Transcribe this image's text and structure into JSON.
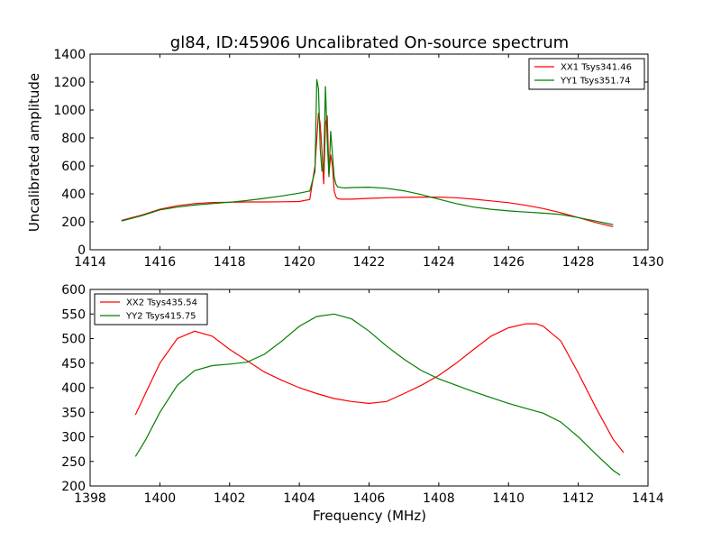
{
  "chart_data": [
    {
      "type": "line",
      "title": "gl84, ID:45906 Uncalibrated On-source spectrum",
      "xlabel": "",
      "ylabel": "Uncalibrated amplitude",
      "xlim": [
        1414,
        1430
      ],
      "ylim": [
        0,
        1400
      ],
      "xticks": [
        1414,
        1416,
        1418,
        1420,
        1422,
        1424,
        1426,
        1428,
        1430
      ],
      "yticks": [
        0,
        200,
        400,
        600,
        800,
        1000,
        1200,
        1400
      ],
      "legend": "top-right",
      "series": [
        {
          "name": "XX1 Tsys341.46",
          "color": "#ff0000",
          "x": [
            1414.9,
            1415.5,
            1416,
            1416.5,
            1417,
            1417.5,
            1418,
            1418.5,
            1419,
            1419.5,
            1420,
            1420.3,
            1420.45,
            1420.55,
            1420.6,
            1420.65,
            1420.7,
            1420.75,
            1420.8,
            1420.85,
            1420.9,
            1420.95,
            1421.0,
            1421.05,
            1421.1,
            1421.2,
            1421.5,
            1422,
            1422.5,
            1423,
            1423.5,
            1424,
            1424.5,
            1425,
            1425.5,
            1426,
            1426.5,
            1427,
            1427.5,
            1428,
            1428.5,
            1429
          ],
          "y": [
            210,
            250,
            290,
            315,
            330,
            338,
            340,
            342,
            342,
            343,
            345,
            360,
            600,
            980,
            900,
            700,
            470,
            900,
            960,
            540,
            680,
            600,
            420,
            380,
            365,
            362,
            362,
            368,
            372,
            375,
            377,
            377,
            372,
            362,
            350,
            337,
            318,
            295,
            265,
            230,
            195,
            165
          ]
        },
        {
          "name": "YY1 Tsys351.74",
          "color": "#008000",
          "x": [
            1414.9,
            1415.5,
            1416,
            1416.5,
            1417,
            1417.5,
            1418,
            1418.5,
            1419,
            1419.5,
            1420,
            1420.3,
            1420.45,
            1420.5,
            1420.55,
            1420.6,
            1420.65,
            1420.7,
            1420.75,
            1420.8,
            1420.85,
            1420.9,
            1420.95,
            1421.0,
            1421.05,
            1421.1,
            1421.3,
            1421.5,
            1422,
            1422.5,
            1423,
            1423.5,
            1424,
            1424.5,
            1425,
            1425.5,
            1426,
            1426.5,
            1427,
            1427.5,
            1428,
            1428.5,
            1429
          ],
          "y": [
            205,
            245,
            285,
            305,
            320,
            330,
            340,
            352,
            368,
            385,
            405,
            420,
            560,
            1220,
            1150,
            720,
            560,
            590,
            1170,
            780,
            520,
            850,
            680,
            520,
            470,
            450,
            442,
            445,
            448,
            440,
            422,
            395,
            362,
            330,
            305,
            290,
            278,
            270,
            262,
            252,
            230,
            205,
            180
          ]
        }
      ]
    },
    {
      "type": "line",
      "title": "",
      "xlabel": "Frequency (MHz)",
      "ylabel": "",
      "xlim": [
        1398,
        1414
      ],
      "ylim": [
        200,
        600
      ],
      "xticks": [
        1398,
        1400,
        1402,
        1404,
        1406,
        1408,
        1410,
        1412,
        1414
      ],
      "yticks": [
        200,
        250,
        300,
        350,
        400,
        450,
        500,
        550,
        600
      ],
      "legend": "top-left",
      "series": [
        {
          "name": "XX2 Tsys435.54",
          "color": "#ff0000",
          "x": [
            1399.3,
            1399.6,
            1400,
            1400.5,
            1401,
            1401.5,
            1402,
            1402.5,
            1403,
            1403.5,
            1404,
            1404.5,
            1405,
            1405.5,
            1406,
            1406.5,
            1407,
            1407.5,
            1408,
            1408.5,
            1409,
            1409.5,
            1410,
            1410.5,
            1410.8,
            1411,
            1411.5,
            1412,
            1412.5,
            1413,
            1413.3
          ],
          "y": [
            345,
            390,
            450,
            500,
            515,
            505,
            478,
            455,
            432,
            415,
            400,
            388,
            378,
            372,
            368,
            372,
            388,
            405,
            425,
            450,
            478,
            505,
            522,
            530,
            530,
            525,
            495,
            430,
            360,
            295,
            268
          ]
        },
        {
          "name": "YY2 Tsys415.75",
          "color": "#008000",
          "x": [
            1399.3,
            1399.6,
            1400,
            1400.5,
            1401,
            1401.5,
            1402,
            1402.5,
            1403,
            1403.5,
            1404,
            1404.5,
            1405,
            1405.5,
            1406,
            1406.5,
            1407,
            1407.5,
            1408,
            1408.5,
            1409,
            1409.5,
            1410,
            1410.5,
            1411,
            1411.5,
            1412,
            1412.5,
            1413,
            1413.2
          ],
          "y": [
            260,
            295,
            350,
            405,
            435,
            445,
            448,
            452,
            468,
            495,
            525,
            545,
            550,
            540,
            515,
            485,
            458,
            435,
            418,
            405,
            392,
            380,
            368,
            358,
            348,
            330,
            300,
            265,
            232,
            222
          ]
        }
      ]
    }
  ]
}
